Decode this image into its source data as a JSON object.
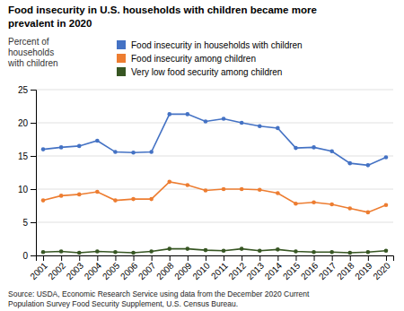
{
  "chart_data": {
    "type": "line",
    "title": "Food insecurity in U.S. households with children became more\nprevalent in 2020",
    "ylabel": "Percent of\nhouseholds\nwith children",
    "source": "Source: USDA, Economic Research Service using data from the December 2020 Current\nPopulation Survey Food Security Supplement, U.S. Census Bureau.",
    "x": [
      2001,
      2002,
      2003,
      2004,
      2005,
      2006,
      2007,
      2008,
      2009,
      2010,
      2011,
      2012,
      2013,
      2014,
      2015,
      2016,
      2017,
      2018,
      2019,
      2020
    ],
    "xlim": [
      2000.6,
      2020.4
    ],
    "xticks": [
      2001,
      2002,
      2003,
      2004,
      2005,
      2006,
      2007,
      2008,
      2009,
      2010,
      2011,
      2012,
      2013,
      2014,
      2015,
      2016,
      2017,
      2018,
      2019,
      2020
    ],
    "series": [
      {
        "name": "Food insecurity in households with children",
        "color": "#4472C4",
        "values": [
          16.0,
          16.3,
          16.5,
          17.3,
          15.6,
          15.5,
          15.6,
          21.3,
          21.3,
          20.2,
          20.6,
          20.0,
          19.5,
          19.2,
          16.2,
          16.3,
          15.7,
          13.9,
          13.6,
          14.8
        ]
      },
      {
        "name": "Food insecurity among children",
        "color": "#ED7D31",
        "values": [
          8.3,
          9.0,
          9.2,
          9.6,
          8.3,
          8.5,
          8.5,
          11.1,
          10.6,
          9.8,
          10.0,
          10.0,
          9.9,
          9.4,
          7.8,
          8.0,
          7.7,
          7.1,
          6.5,
          7.6
        ]
      },
      {
        "name": "Very low food security among children",
        "color": "#375623",
        "values": [
          0.5,
          0.6,
          0.4,
          0.6,
          0.5,
          0.4,
          0.6,
          1.0,
          1.0,
          0.8,
          0.7,
          1.0,
          0.7,
          0.9,
          0.6,
          0.5,
          0.5,
          0.4,
          0.5,
          0.7
        ]
      }
    ],
    "ylim": [
      0,
      25
    ],
    "yticks": [
      0,
      5,
      10,
      15,
      20,
      25
    ],
    "grid": true,
    "marker": "circle"
  }
}
